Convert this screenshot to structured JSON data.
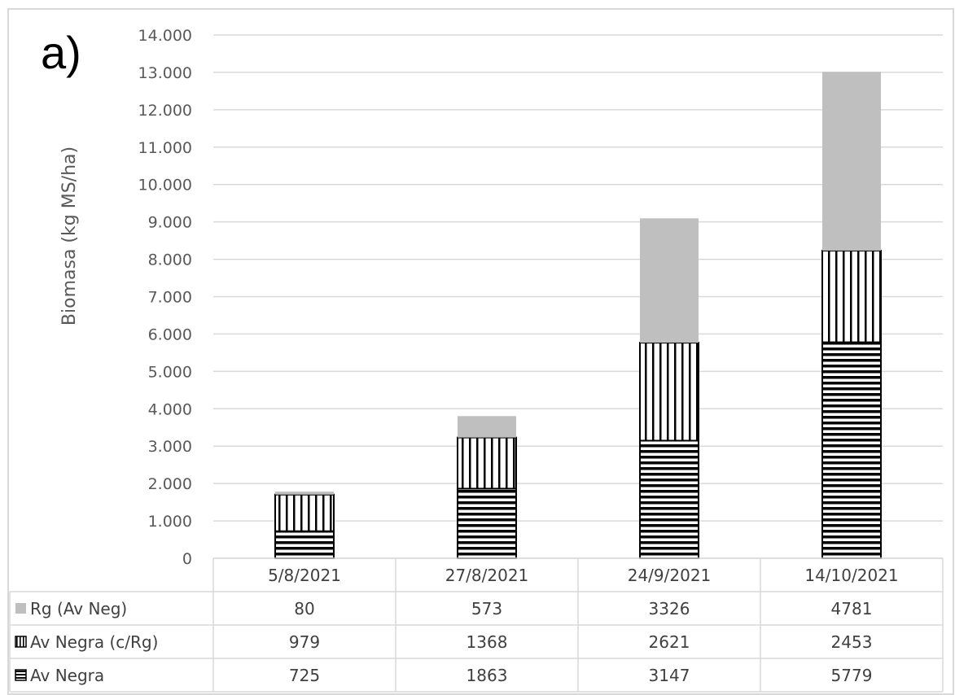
{
  "panel_label": "a)",
  "chart_data": {
    "type": "bar",
    "stacked": true,
    "ylabel": "Biomasa (kg MS/ha)",
    "ylim": [
      0,
      14000
    ],
    "ytick_step": 1000,
    "ytick_labels": [
      "0",
      "1.000",
      "2.000",
      "3.000",
      "4.000",
      "5.000",
      "6.000",
      "7.000",
      "8.000",
      "9.000",
      "10.000",
      "11.000",
      "12.000",
      "13.000",
      "14.000"
    ],
    "grid": true,
    "legend": "data-table-left",
    "categories": [
      "5/8/2021",
      "27/8/2021",
      "24/9/2021",
      "14/10/2021"
    ],
    "series": [
      {
        "name": "Av Negra",
        "values": [
          725,
          1863,
          3147,
          5779
        ],
        "fill": "horizontal-stripes",
        "color": "#000000"
      },
      {
        "name": "Av Negra (c/Rg)",
        "values": [
          979,
          1368,
          2621,
          2453
        ],
        "fill": "vertical-stripes",
        "color": "#000000"
      },
      {
        "name": "Rg (Av Neg)",
        "values": [
          80,
          573,
          3326,
          4781
        ],
        "fill": "solid",
        "color": "#bfbfbf"
      }
    ]
  }
}
